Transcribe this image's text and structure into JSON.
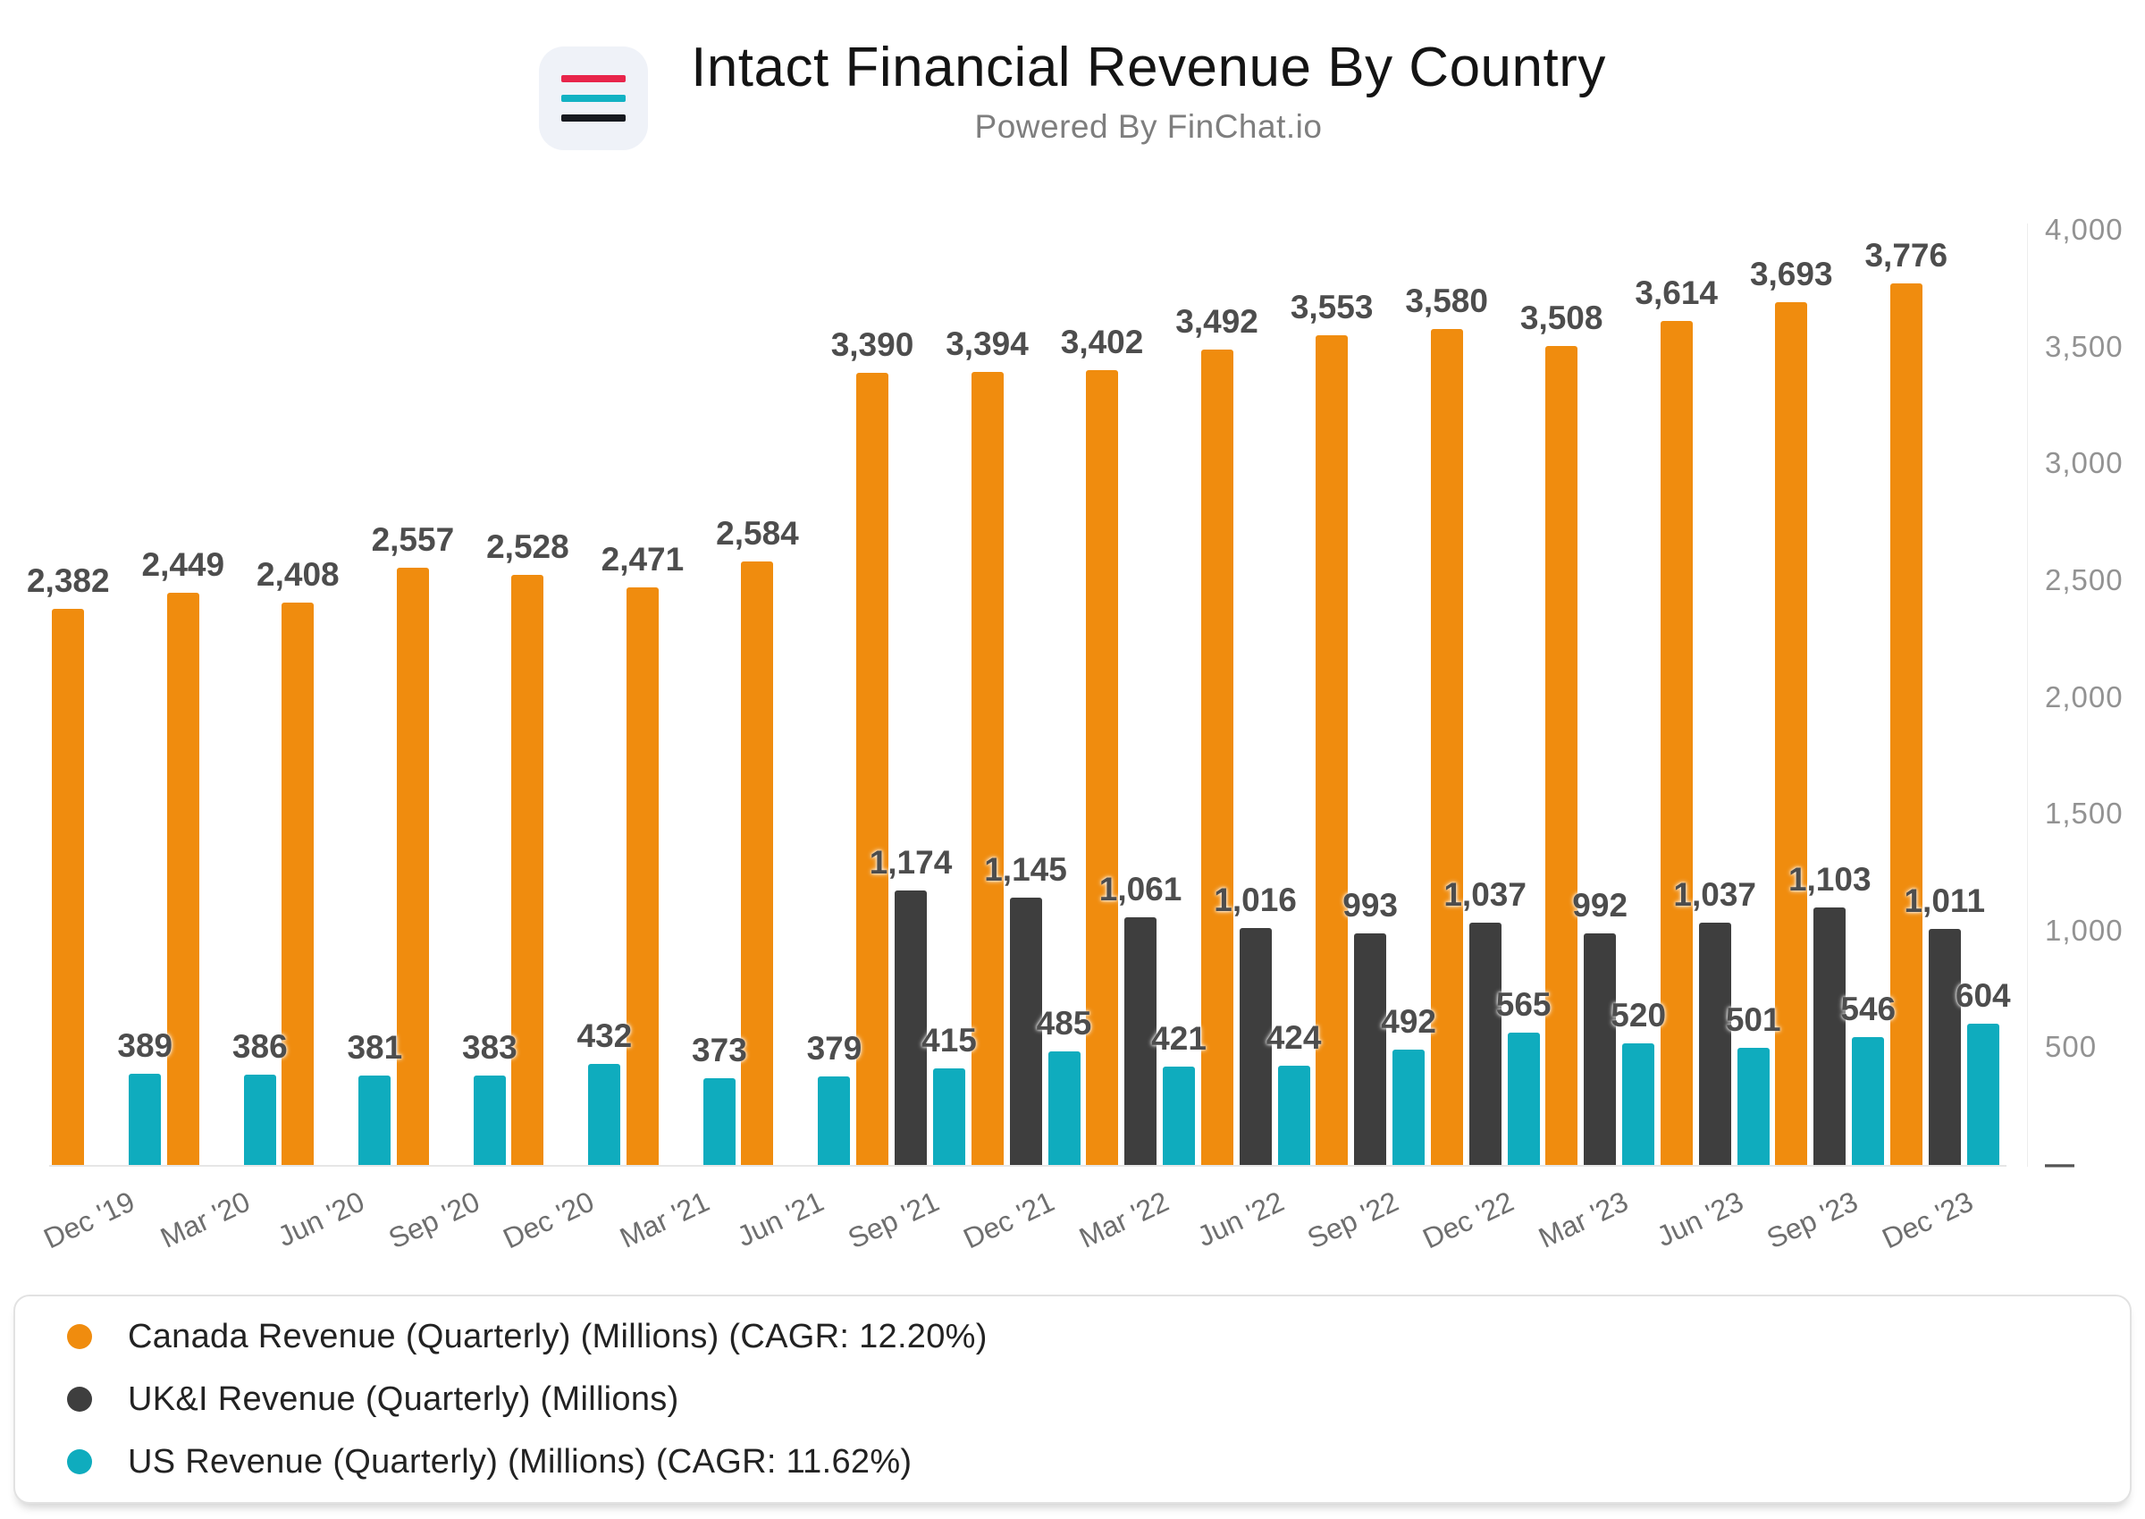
{
  "header": {
    "title": "Intact Financial Revenue By Country",
    "subtitle": "Powered By FinChat.io",
    "logo": {
      "icon": "finchat-logo",
      "background": "#EFF2F8",
      "bar_colors": [
        "#E8254B",
        "#12B2C3",
        "#16191F"
      ]
    }
  },
  "chart_data": {
    "type": "bar",
    "title": "Intact Financial Revenue By Country",
    "xlabel": "",
    "ylabel": "",
    "ylim": [
      0,
      4000
    ],
    "grid": false,
    "legend_position": "bottom",
    "y_axis_side": "right",
    "y_tick_values": [
      4000,
      3500,
      3000,
      2500,
      2000,
      1500,
      1000,
      500,
      0
    ],
    "y_tick_labels": [
      "4,000",
      "3,500",
      "3,000",
      "2,500",
      "2,000",
      "1,500",
      "1,000",
      "500",
      "—"
    ],
    "categories": [
      "Dec '19",
      "Mar '20",
      "Jun '20",
      "Sep '20",
      "Dec '20",
      "Mar '21",
      "Jun '21",
      "Sep '21",
      "Dec '21",
      "Mar '22",
      "Jun '22",
      "Sep '22",
      "Dec '22",
      "Mar '23",
      "Jun '23",
      "Sep '23",
      "Dec '23"
    ],
    "series": [
      {
        "key": "canada",
        "name": "Canada Revenue (Quarterly) (Millions) (CAGR: 12.20%)",
        "color": "#F08C0E",
        "values": [
          2382,
          2449,
          2408,
          2557,
          2528,
          2471,
          2584,
          3390,
          3394,
          3402,
          3492,
          3553,
          3580,
          3508,
          3614,
          3693,
          3776
        ]
      },
      {
        "key": "uki",
        "name": "UK&I Revenue (Quarterly) (Millions)",
        "color": "#3E3E3E",
        "values": [
          null,
          null,
          null,
          null,
          null,
          null,
          null,
          1174,
          1145,
          1061,
          1016,
          993,
          1037,
          992,
          1037,
          1103,
          1011
        ]
      },
      {
        "key": "us",
        "name": "US Revenue (Quarterly) (Millions) (CAGR: 11.62%)",
        "color": "#0FACBE",
        "values": [
          389,
          386,
          381,
          383,
          432,
          373,
          379,
          415,
          485,
          421,
          424,
          492,
          565,
          520,
          501,
          546,
          604
        ]
      }
    ]
  }
}
